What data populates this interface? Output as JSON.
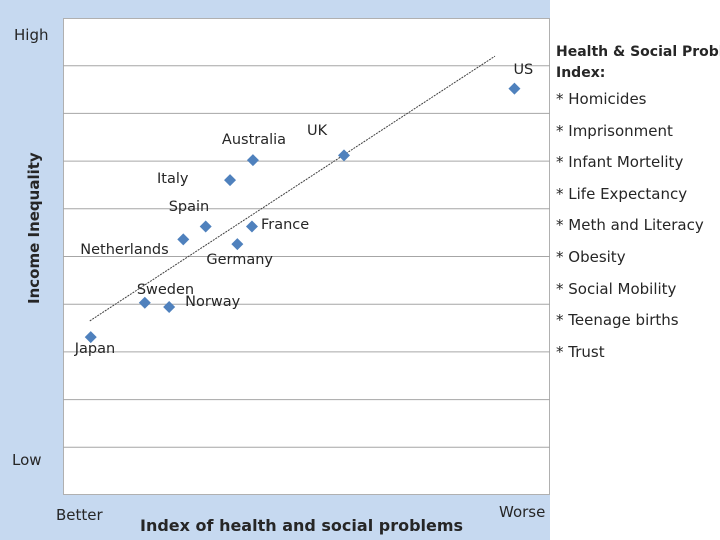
{
  "chart_data": {
    "type": "scatter",
    "y_axis": {
      "title": "Income Inequality",
      "high_label": "High",
      "low_label": "Low"
    },
    "x_axis": {
      "title": "Index of health and social problems",
      "low_label": "Better",
      "high_label": "Worse"
    },
    "grid": true,
    "trend_line": true,
    "points": [
      {
        "label": "US",
        "x": 92.7,
        "y": 85.2
      },
      {
        "label": "UK",
        "x": 57.7,
        "y": 71.2
      },
      {
        "label": "Australia",
        "x": 39.0,
        "y": 70.2
      },
      {
        "label": "Italy",
        "x": 34.3,
        "y": 66.0
      },
      {
        "label": "France",
        "x": 38.8,
        "y": 56.3
      },
      {
        "label": "Spain",
        "x": 29.3,
        "y": 56.3
      },
      {
        "label": "Netherlands",
        "x": 24.7,
        "y": 53.6
      },
      {
        "label": "Germany",
        "x": 35.8,
        "y": 52.6
      },
      {
        "label": "Sweden",
        "x": 16.8,
        "y": 40.3
      },
      {
        "label": "Norway",
        "x": 21.8,
        "y": 39.4
      },
      {
        "label": "Japan",
        "x": 5.7,
        "y": 33.1
      }
    ],
    "trend": [
      [
        5.5,
        36.5
      ],
      [
        88.7,
        92.0
      ]
    ]
  },
  "legend": {
    "title_line1": "Health & Social Problem",
    "title_line2": "Index:",
    "items": [
      "* Homicides",
      "* Imprisonment",
      "* Infant Mortelity",
      "* Life Expectancy",
      "* Meth and Literacy",
      "* Obesity",
      "* Social Mobility",
      "* Teenage births",
      "* Trust"
    ]
  },
  "colors": {
    "marker": "#4f81bd",
    "grid": "#a6a6a6",
    "trend": "#404040"
  }
}
